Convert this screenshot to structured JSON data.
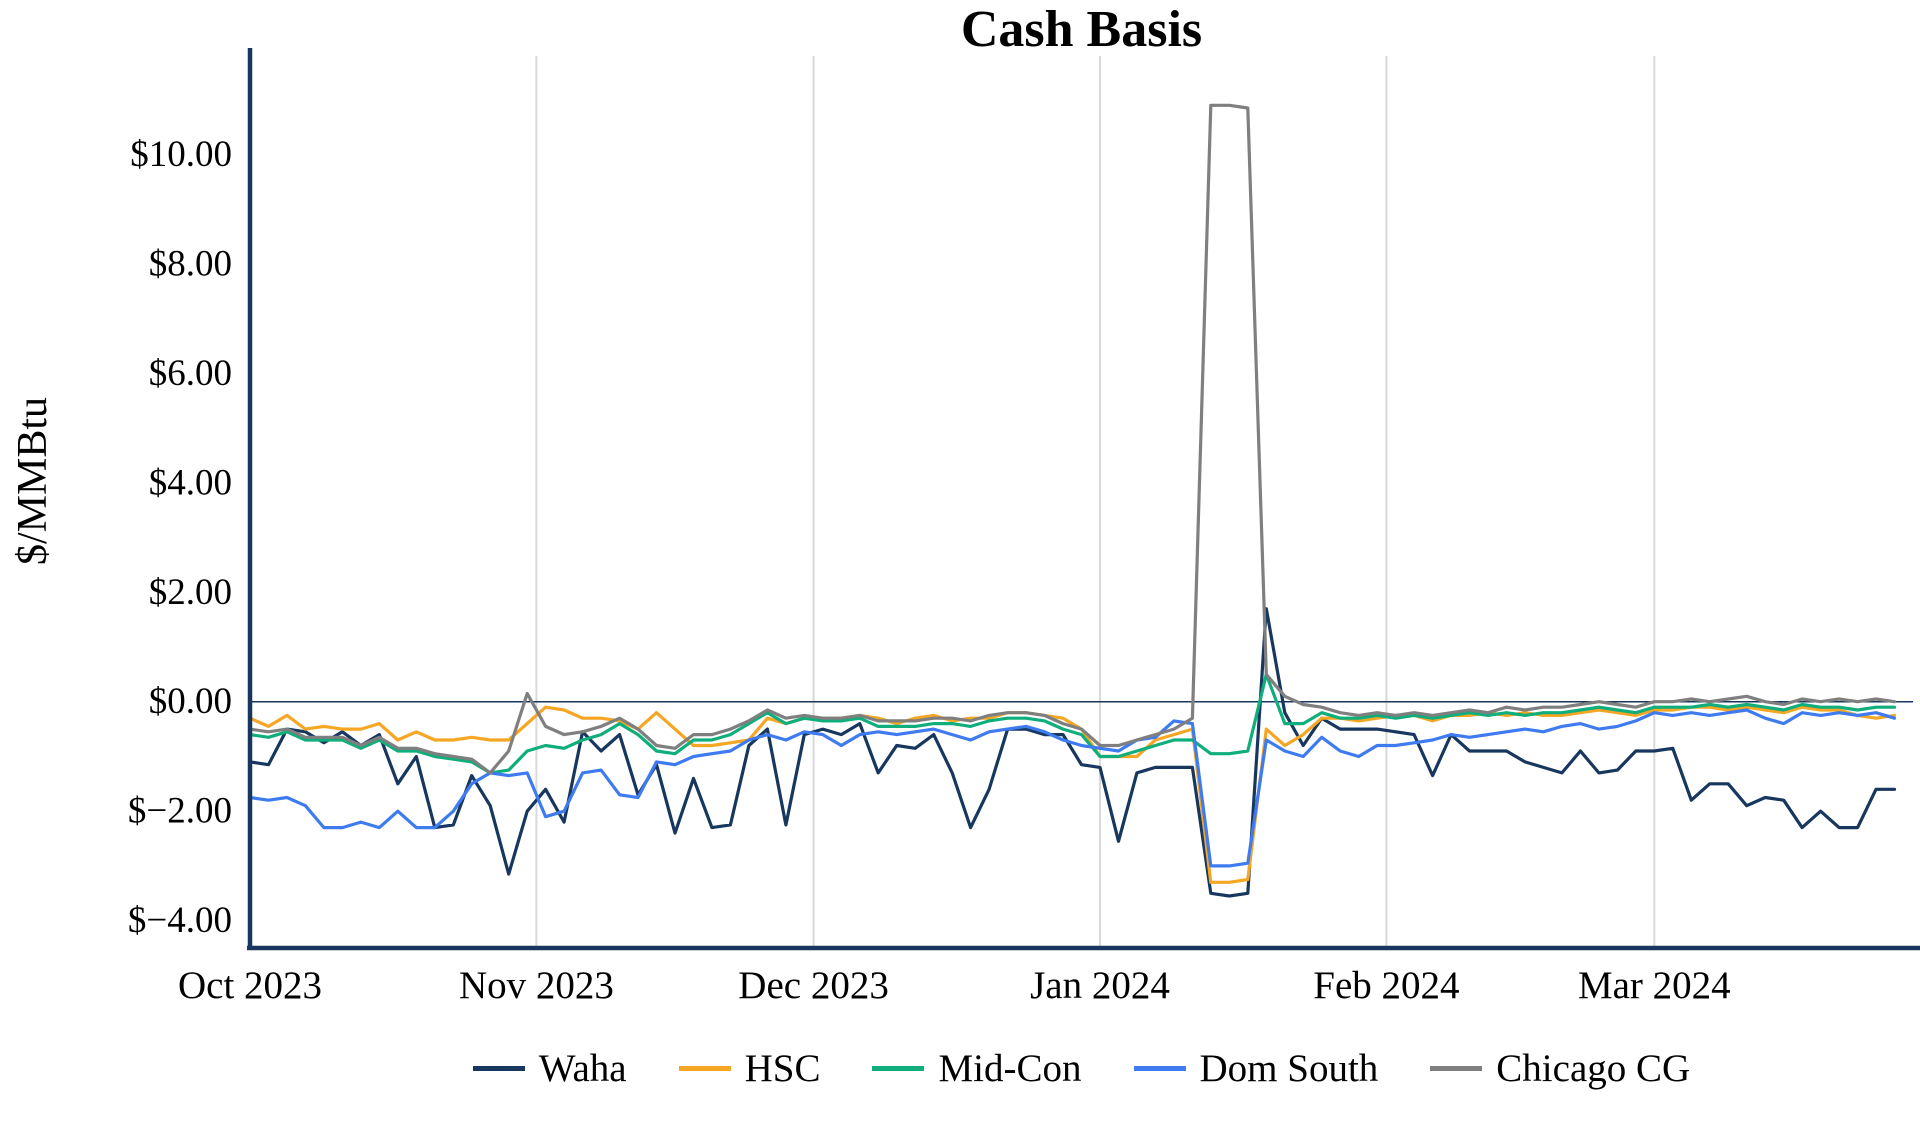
{
  "chart_data": {
    "type": "line",
    "title": "Cash Basis",
    "xlabel": "",
    "ylabel": "$/MMBtu",
    "x_unit": "days since Oct 1, 2023 (sampled every 2 days)",
    "xlim": [
      0,
      180
    ],
    "ylim": [
      -4.5,
      11.8
    ],
    "grid": "vertical-month-gridlines-only",
    "zero_line": true,
    "legend_position": "bottom-center",
    "colors": {
      "axis": "#17375e",
      "gridline": "#d9d9d9",
      "zero_line": "#17375e"
    },
    "y_ticks": [
      {
        "value": 10,
        "label": "$10.00"
      },
      {
        "value": 8,
        "label": "$8.00"
      },
      {
        "value": 6,
        "label": "$6.00"
      },
      {
        "value": 4,
        "label": "$4.00"
      },
      {
        "value": 2,
        "label": "$2.00"
      },
      {
        "value": 0,
        "label": "$0.00"
      },
      {
        "value": -2,
        "label": "$−2.00"
      },
      {
        "value": -4,
        "label": "$−4.00"
      }
    ],
    "x_ticks": [
      {
        "day": 0,
        "label": "Oct 2023"
      },
      {
        "day": 31,
        "label": "Nov 2023"
      },
      {
        "day": 61,
        "label": "Dec 2023"
      },
      {
        "day": 92,
        "label": "Jan 2024"
      },
      {
        "day": 123,
        "label": "Feb 2024"
      },
      {
        "day": 152,
        "label": "Mar 2024"
      }
    ],
    "x_days": [
      0,
      2,
      4,
      6,
      8,
      10,
      12,
      14,
      16,
      18,
      20,
      22,
      24,
      26,
      28,
      30,
      32,
      34,
      36,
      38,
      40,
      42,
      44,
      46,
      48,
      50,
      52,
      54,
      56,
      58,
      60,
      62,
      64,
      66,
      68,
      70,
      72,
      74,
      76,
      78,
      80,
      82,
      84,
      86,
      88,
      90,
      92,
      94,
      96,
      98,
      100,
      102,
      104,
      106,
      108,
      110,
      112,
      114,
      116,
      118,
      120,
      122,
      124,
      126,
      128,
      130,
      132,
      134,
      136,
      138,
      140,
      142,
      144,
      146,
      148,
      150,
      152,
      154,
      156,
      158,
      160,
      162,
      164,
      166,
      168,
      170,
      172,
      174,
      176,
      178
    ],
    "series": [
      {
        "key": "waha",
        "name": "Waha",
        "color": "#17375e",
        "values": [
          -1.1,
          -1.15,
          -0.5,
          -0.55,
          -0.75,
          -0.55,
          -0.8,
          -0.6,
          -1.5,
          -1.0,
          -2.3,
          -2.25,
          -1.35,
          -1.9,
          -3.15,
          -2.0,
          -1.6,
          -2.2,
          -0.55,
          -0.9,
          -0.6,
          -1.7,
          -1.15,
          -2.4,
          -1.4,
          -2.3,
          -2.25,
          -0.8,
          -0.5,
          -2.25,
          -0.6,
          -0.5,
          -0.6,
          -0.4,
          -1.3,
          -0.8,
          -0.85,
          -0.6,
          -1.3,
          -2.3,
          -1.6,
          -0.5,
          -0.5,
          -0.6,
          -0.6,
          -1.15,
          -1.2,
          -2.55,
          -1.3,
          -1.2,
          -1.2,
          -1.2,
          -3.5,
          -3.55,
          -3.5,
          1.7,
          -0.2,
          -0.8,
          -0.3,
          -0.5,
          -0.5,
          -0.5,
          -0.55,
          -0.6,
          -1.35,
          -0.6,
          -0.9,
          -0.9,
          -0.9,
          -1.1,
          -1.2,
          -1.3,
          -0.9,
          -1.3,
          -1.25,
          -0.9,
          -0.9,
          -0.85,
          -1.8,
          -1.5,
          -1.5,
          -1.9,
          -1.75,
          -1.8,
          -2.3,
          -2.0,
          -2.3,
          -2.3,
          -1.6,
          -1.6
        ]
      },
      {
        "key": "hsc",
        "name": "HSC",
        "color": "#f5a623",
        "values": [
          -0.3,
          -0.45,
          -0.25,
          -0.5,
          -0.45,
          -0.5,
          -0.5,
          -0.4,
          -0.7,
          -0.55,
          -0.7,
          -0.7,
          -0.65,
          -0.7,
          -0.7,
          -0.4,
          -0.1,
          -0.15,
          -0.3,
          -0.3,
          -0.35,
          -0.5,
          -0.2,
          -0.5,
          -0.8,
          -0.8,
          -0.75,
          -0.7,
          -0.3,
          -0.4,
          -0.3,
          -0.3,
          -0.3,
          -0.25,
          -0.3,
          -0.4,
          -0.3,
          -0.25,
          -0.35,
          -0.3,
          -0.3,
          -0.2,
          -0.2,
          -0.25,
          -0.3,
          -0.5,
          -1.0,
          -1.0,
          -1.0,
          -0.7,
          -0.6,
          -0.5,
          -3.3,
          -3.3,
          -3.25,
          -0.5,
          -0.8,
          -0.6,
          -0.3,
          -0.3,
          -0.35,
          -0.3,
          -0.25,
          -0.25,
          -0.35,
          -0.25,
          -0.25,
          -0.2,
          -0.25,
          -0.2,
          -0.25,
          -0.25,
          -0.2,
          -0.15,
          -0.2,
          -0.25,
          -0.15,
          -0.15,
          -0.1,
          -0.1,
          -0.15,
          -0.1,
          -0.15,
          -0.2,
          -0.1,
          -0.15,
          -0.15,
          -0.25,
          -0.3,
          -0.25
        ]
      },
      {
        "key": "mid-con",
        "name": "Mid-Con",
        "color": "#0fae7c",
        "values": [
          -0.6,
          -0.65,
          -0.55,
          -0.7,
          -0.7,
          -0.7,
          -0.85,
          -0.7,
          -0.9,
          -0.9,
          -1.0,
          -1.05,
          -1.1,
          -1.3,
          -1.25,
          -0.9,
          -0.8,
          -0.85,
          -0.7,
          -0.6,
          -0.4,
          -0.6,
          -0.9,
          -0.95,
          -0.7,
          -0.7,
          -0.6,
          -0.4,
          -0.2,
          -0.4,
          -0.3,
          -0.35,
          -0.35,
          -0.3,
          -0.45,
          -0.45,
          -0.45,
          -0.4,
          -0.4,
          -0.45,
          -0.35,
          -0.3,
          -0.3,
          -0.35,
          -0.5,
          -0.6,
          -1.0,
          -1.0,
          -0.9,
          -0.8,
          -0.7,
          -0.7,
          -0.95,
          -0.95,
          -0.9,
          0.5,
          -0.4,
          -0.4,
          -0.2,
          -0.3,
          -0.3,
          -0.25,
          -0.3,
          -0.25,
          -0.3,
          -0.25,
          -0.2,
          -0.25,
          -0.2,
          -0.25,
          -0.2,
          -0.2,
          -0.15,
          -0.1,
          -0.15,
          -0.2,
          -0.1,
          -0.1,
          -0.1,
          -0.05,
          -0.1,
          -0.05,
          -0.1,
          -0.15,
          -0.05,
          -0.1,
          -0.1,
          -0.15,
          -0.1,
          -0.1
        ]
      },
      {
        "key": "dom-south",
        "name": "Dom South",
        "color": "#3e7bf0",
        "values": [
          -1.75,
          -1.8,
          -1.75,
          -1.9,
          -2.3,
          -2.3,
          -2.2,
          -2.3,
          -2.0,
          -2.3,
          -2.3,
          -2.0,
          -1.5,
          -1.3,
          -1.35,
          -1.3,
          -2.1,
          -2.0,
          -1.3,
          -1.25,
          -1.7,
          -1.75,
          -1.1,
          -1.15,
          -1.0,
          -0.95,
          -0.9,
          -0.7,
          -0.6,
          -0.7,
          -0.55,
          -0.6,
          -0.8,
          -0.6,
          -0.55,
          -0.6,
          -0.55,
          -0.5,
          -0.6,
          -0.7,
          -0.55,
          -0.5,
          -0.45,
          -0.55,
          -0.7,
          -0.8,
          -0.85,
          -0.9,
          -0.7,
          -0.65,
          -0.35,
          -0.4,
          -3.0,
          -3.0,
          -2.95,
          -0.7,
          -0.9,
          -1.0,
          -0.65,
          -0.9,
          -1.0,
          -0.8,
          -0.8,
          -0.75,
          -0.7,
          -0.6,
          -0.65,
          -0.6,
          -0.55,
          -0.5,
          -0.55,
          -0.45,
          -0.4,
          -0.5,
          -0.45,
          -0.35,
          -0.2,
          -0.25,
          -0.2,
          -0.25,
          -0.2,
          -0.15,
          -0.3,
          -0.4,
          -0.2,
          -0.25,
          -0.2,
          -0.25,
          -0.2,
          -0.3
        ]
      },
      {
        "key": "chicago-cg",
        "name": "Chicago CG",
        "color": "#7f7f7f",
        "values": [
          -0.5,
          -0.55,
          -0.5,
          -0.65,
          -0.65,
          -0.65,
          -0.8,
          -0.65,
          -0.85,
          -0.85,
          -0.95,
          -1.0,
          -1.05,
          -1.3,
          -0.9,
          0.15,
          -0.45,
          -0.6,
          -0.55,
          -0.45,
          -0.3,
          -0.5,
          -0.8,
          -0.85,
          -0.6,
          -0.6,
          -0.5,
          -0.35,
          -0.15,
          -0.3,
          -0.25,
          -0.3,
          -0.3,
          -0.25,
          -0.35,
          -0.35,
          -0.35,
          -0.3,
          -0.3,
          -0.35,
          -0.25,
          -0.2,
          -0.2,
          -0.25,
          -0.4,
          -0.5,
          -0.8,
          -0.8,
          -0.7,
          -0.6,
          -0.5,
          -0.3,
          10.9,
          10.9,
          10.85,
          0.5,
          0.1,
          -0.05,
          -0.1,
          -0.2,
          -0.25,
          -0.2,
          -0.25,
          -0.2,
          -0.25,
          -0.2,
          -0.15,
          -0.2,
          -0.1,
          -0.15,
          -0.1,
          -0.1,
          -0.05,
          0,
          -0.05,
          -0.1,
          0,
          0,
          0.05,
          0,
          0.05,
          0.1,
          0,
          -0.05,
          0.05,
          0,
          0.05,
          0,
          0.05,
          0
        ]
      }
    ]
  }
}
